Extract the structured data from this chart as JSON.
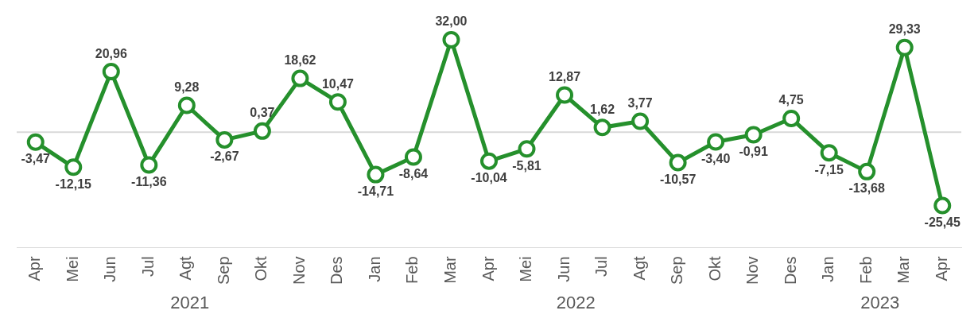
{
  "chart_data": {
    "type": "line",
    "categories": [
      "Apr",
      "Mei",
      "Jun",
      "Jul",
      "Agt",
      "Sep",
      "Okt",
      "Nov",
      "Des",
      "Jan",
      "Feb",
      "Mar",
      "Apr",
      "Mei",
      "Jun",
      "Jul",
      "Agt",
      "Sep",
      "Okt",
      "Nov",
      "Des",
      "Jan",
      "Feb",
      "Mar",
      "Apr"
    ],
    "series": [
      {
        "color": "#25902c",
        "values": [
          -3.47,
          -12.15,
          20.96,
          -11.36,
          9.28,
          -2.67,
          0.37,
          18.62,
          10.47,
          -14.71,
          -8.64,
          32.0,
          -10.04,
          -5.81,
          12.87,
          1.62,
          3.77,
          -10.57,
          -3.4,
          -0.91,
          4.75,
          -7.15,
          -13.68,
          29.33,
          -25.45
        ],
        "value_labels": [
          "-3,47",
          "-12,15",
          "20,96",
          "-11,36",
          "9,28",
          "-2,67",
          "0,37",
          "18,62",
          "10,47",
          "-14,71",
          "-8,64",
          "32,00",
          "-10,04",
          "-5,81",
          "12,87",
          "1,62",
          "3,77",
          "-10,57",
          "-3,40",
          "-0,91",
          "4,75",
          "-7,15",
          "-13,68",
          "29,33",
          "-25,45"
        ]
      }
    ],
    "marker": "circle",
    "grid": false,
    "legend": false,
    "tick_labels": "x",
    "ref_lines": [
      {
        "axis": "y",
        "value": 0,
        "color": "#d9d9d9"
      }
    ],
    "annotations": [
      "2021",
      "2022",
      "2023"
    ]
  }
}
